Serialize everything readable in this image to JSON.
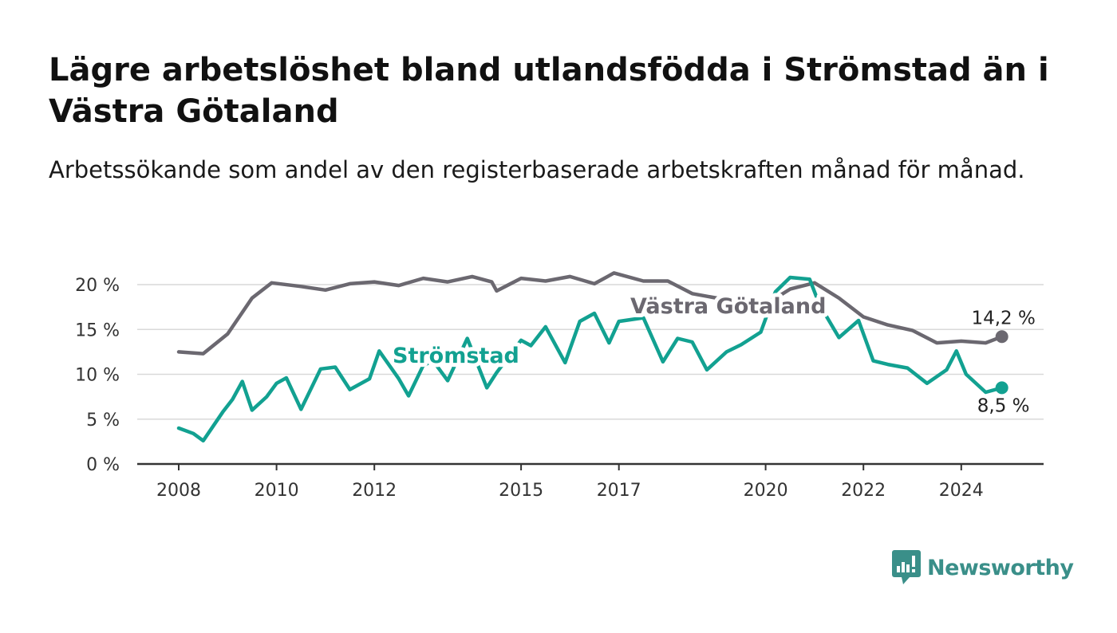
{
  "header": {
    "title": "Lägre arbetslöshet bland utlandsfödda i Strömstad än i Västra Götaland",
    "subtitle": "Arbetssökande som andel av den registerbaserade arbetskraften månad för månad."
  },
  "brand": {
    "name": "Newsworthy",
    "color": "#3a8f89",
    "icon": "bar-chart-speech-bubble-icon"
  },
  "chart_data": {
    "type": "line",
    "title": "",
    "xlabel": "",
    "ylabel": "",
    "ylim": [
      0,
      20
    ],
    "xlim": [
      2008,
      2025.5
    ],
    "y_ticks": [
      "0 %",
      "5 %",
      "10 %",
      "15 %",
      "20 %"
    ],
    "x_ticks": [
      "2008",
      "2010",
      "2012",
      "2015",
      "2017",
      "2020",
      "2022",
      "2024"
    ],
    "grid": true,
    "series": [
      {
        "name": "Västra Götaland",
        "color": "#6b6870",
        "end_label": "14,2 %",
        "x": [
          2008,
          2008.5,
          2009,
          2009.5,
          2009.9,
          2010.5,
          2011,
          2011.5,
          2012,
          2012.5,
          2013,
          2013.5,
          2014,
          2014.4,
          2014.5,
          2015,
          2015.5,
          2016,
          2016.5,
          2016.9,
          2017.5,
          2018,
          2018.5,
          2019,
          2019.5,
          2020,
          2020.5,
          2021,
          2021.5,
          2022,
          2022.5,
          2023,
          2023.5,
          2024,
          2024.5,
          2024.83
        ],
        "y": [
          12.5,
          12.3,
          14.5,
          18.5,
          20.2,
          19.8,
          19.4,
          20.1,
          20.3,
          19.9,
          20.7,
          20.3,
          20.9,
          20.3,
          19.3,
          20.7,
          20.4,
          20.9,
          20.1,
          21.3,
          20.4,
          20.4,
          19.0,
          18.5,
          18.0,
          17.8,
          19.5,
          20.2,
          18.5,
          16.4,
          15.5,
          14.9,
          13.5,
          13.7,
          13.5,
          14.2
        ]
      },
      {
        "name": "Strömstad",
        "color": "#12a191",
        "end_label": "8,5 %",
        "x": [
          2008,
          2008.3,
          2008.5,
          2008.9,
          2009.1,
          2009.3,
          2009.5,
          2009.8,
          2010,
          2010.2,
          2010.5,
          2010.9,
          2011.2,
          2011.5,
          2011.9,
          2012.1,
          2012.5,
          2012.7,
          2013,
          2013.2,
          2013.5,
          2013.9,
          2014.3,
          2014.5,
          2015,
          2015.2,
          2015.5,
          2015.9,
          2016.2,
          2016.5,
          2016.8,
          2017,
          2017.5,
          2017.9,
          2018.2,
          2018.5,
          2018.8,
          2019.2,
          2019.5,
          2019.9,
          2020.2,
          2020.5,
          2020.9,
          2021.1,
          2021.5,
          2021.9,
          2022.2,
          2022.5,
          2022.9,
          2023.3,
          2023.7,
          2023.9,
          2024.1,
          2024.5,
          2024.83
        ],
        "y": [
          4.0,
          3.4,
          2.6,
          5.8,
          7.2,
          9.2,
          6.0,
          7.5,
          9.0,
          9.6,
          6.1,
          10.6,
          10.8,
          8.3,
          9.5,
          12.6,
          9.5,
          7.6,
          11.0,
          11.5,
          9.3,
          14.0,
          8.5,
          10.2,
          13.8,
          13.2,
          15.3,
          11.3,
          15.9,
          16.8,
          13.5,
          15.9,
          16.3,
          11.4,
          14.0,
          13.6,
          10.5,
          12.5,
          13.3,
          14.7,
          19.2,
          20.8,
          20.6,
          17.8,
          14.1,
          16.0,
          11.5,
          11.1,
          10.7,
          9.0,
          10.5,
          12.6,
          10.0,
          8.0,
          8.5
        ]
      }
    ]
  }
}
